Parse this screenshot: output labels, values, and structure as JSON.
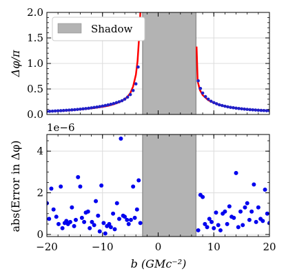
{
  "chart_data": [
    {
      "panel": "top",
      "type": "line",
      "ylabel": "Δφ/π",
      "xlim": [
        -20,
        20
      ],
      "ylim": [
        0,
        2
      ],
      "yticks": [
        "0.0",
        "0.5",
        "1.0",
        "1.5",
        "2.0"
      ],
      "grid": true,
      "legend": {
        "placement": "top-left",
        "entries": [
          {
            "label": "Shadow",
            "color": "#b3b3b3"
          }
        ]
      },
      "shadow_region": [
        -2.8,
        6.8
      ],
      "series": [
        {
          "style": "line",
          "color": "#ff0000",
          "x": [
            -20,
            -18,
            -16,
            -14,
            -12,
            -10,
            -9,
            -8,
            -7,
            -6,
            -5.5,
            -5,
            -4.5,
            -4,
            -3.7,
            -3.4,
            -3.2
          ],
          "y": [
            0.06,
            0.07,
            0.08,
            0.1,
            0.12,
            0.15,
            0.17,
            0.2,
            0.24,
            0.3,
            0.35,
            0.42,
            0.55,
            0.78,
            1.05,
            1.55,
            2.0
          ]
        },
        {
          "style": "line",
          "color": "#ff0000",
          "x": [
            6.9,
            7.1,
            7.5,
            8,
            9,
            10,
            11,
            12,
            13,
            14,
            16,
            18,
            20
          ],
          "y": [
            1.33,
            0.65,
            0.48,
            0.38,
            0.28,
            0.23,
            0.19,
            0.16,
            0.14,
            0.125,
            0.1,
            0.085,
            0.075
          ]
        },
        {
          "style": "dots",
          "color": "#2020c8",
          "x": [
            -20,
            -19.5,
            -19,
            -18.5,
            -18,
            -17.5,
            -17,
            -16.5,
            -16,
            -15.5,
            -15,
            -14.5,
            -14,
            -13.5,
            -13,
            -12.5,
            -12,
            -11.5,
            -11,
            -10.5,
            -10,
            -9.5,
            -9,
            -8.5,
            -8,
            -7.5,
            -7,
            -6.5,
            -6,
            -5.5,
            -5,
            -4.5,
            -4,
            -3.6,
            -3.2,
            7.2,
            7.6,
            8,
            8.5,
            9,
            9.5,
            10,
            10.5,
            11,
            11.5,
            12,
            12.5,
            13,
            13.5,
            14,
            14.5,
            15,
            15.5,
            16,
            16.5,
            17,
            17.5,
            18,
            18.5,
            19,
            19.5,
            20
          ],
          "y": [
            0.06,
            0.063,
            0.066,
            0.069,
            0.072,
            0.075,
            0.078,
            0.082,
            0.086,
            0.09,
            0.094,
            0.099,
            0.104,
            0.11,
            0.116,
            0.122,
            0.13,
            0.138,
            0.146,
            0.155,
            0.165,
            0.176,
            0.188,
            0.2,
            0.215,
            0.232,
            0.25,
            0.27,
            0.3,
            0.34,
            0.39,
            0.47,
            0.6,
            0.93,
            1.65,
            0.66,
            0.51,
            0.42,
            0.35,
            0.3,
            0.26,
            0.233,
            0.21,
            0.19,
            0.175,
            0.162,
            0.15,
            0.14,
            0.132,
            0.124,
            0.117,
            0.111,
            0.105,
            0.1,
            0.095,
            0.091,
            0.087,
            0.083,
            0.08,
            0.077,
            0.074,
            0.072
          ]
        }
      ]
    },
    {
      "panel": "bottom",
      "type": "scatter",
      "ylabel": "abs(Error in Δφ)",
      "xlabel": "b (GMc⁻²)",
      "offset_label": "1e−6",
      "xlim": [
        -20,
        20
      ],
      "ylim": [
        -0.1,
        4.8
      ],
      "xticks": [
        "−20",
        "−10",
        "0",
        "10",
        "20"
      ],
      "yticks": [
        "0",
        "2",
        "4"
      ],
      "grid": true,
      "shadow_region": [
        -2.8,
        6.8
      ],
      "series": [
        {
          "color": "#0000ee",
          "x": [
            -20,
            -19.6,
            -19.2,
            -18.8,
            -18.3,
            -17.9,
            -17.5,
            -17.2,
            -16.8,
            -16.5,
            -16.2,
            -15.8,
            -15.5,
            -15.1,
            -14.8,
            -14.4,
            -14,
            -13.7,
            -13.3,
            -13,
            -12.6,
            -12.3,
            -11.9,
            -11.5,
            -11.2,
            -10.8,
            -10.5,
            -10.2,
            -9.8,
            -9.5,
            -9.2,
            -8.8,
            -8.5,
            -8.1,
            -7.8,
            -7.4,
            -7,
            -6.7,
            -6.3,
            -6,
            -5.6,
            -5.3,
            -4.9,
            -4.5,
            -4.2,
            -3.8,
            -3.5,
            -3.2,
            7.2,
            7.6,
            8,
            8.4,
            8.8,
            9.2,
            9.6,
            10,
            10.4,
            10.8,
            11.2,
            11.6,
            12,
            12.4,
            12.8,
            13.2,
            13.6,
            14,
            14.4,
            14.8,
            15.2,
            15.6,
            16,
            16.4,
            16.8,
            17.2,
            17.6,
            18,
            18.4,
            18.8,
            19.2,
            19.6,
            20
          ],
          "y": [
            1.5,
            0.75,
            2.2,
            1.2,
            0.85,
            0.5,
            2.3,
            0.3,
            0.55,
            0.65,
            0.5,
            0.6,
            1.3,
            0.4,
            0.7,
            2.75,
            2.3,
            0.8,
            0.6,
            1.05,
            1.1,
            0.3,
            0.6,
            0.45,
            1.6,
            0.9,
            0.15,
            2.35,
            0.55,
            0.05,
            0.4,
            0.5,
            0.35,
            1.0,
            0.25,
            1.5,
            0.75,
            4.6,
            0.9,
            0.85,
            0.7,
            0.5,
            0.7,
            2.3,
            0.8,
            1.2,
            2.6,
            0.55,
            0.2,
            1.9,
            1.8,
            0.5,
            0.35,
            0.75,
            0.6,
            0.3,
            1.05,
            0.45,
            0.2,
            1.0,
            1.1,
            0.5,
            1.35,
            0.85,
            0.8,
            2.95,
            0.35,
            1.1,
            0.45,
            1.3,
            1.5,
            0.7,
            1.1,
            2.4,
            0.6,
            1.3,
            0.75,
            0.65,
            2.15,
            1.0,
            0.55
          ]
        }
      ]
    }
  ]
}
